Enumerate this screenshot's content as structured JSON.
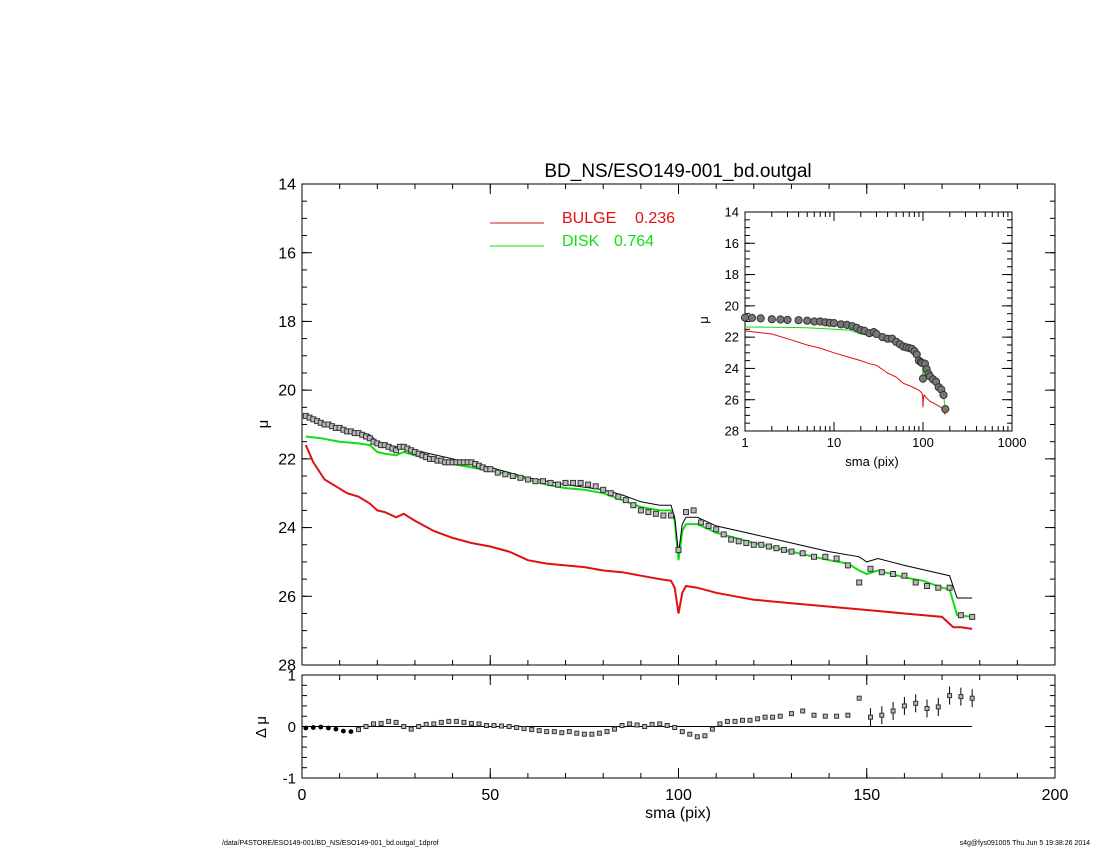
{
  "figure": {
    "title": "BD_NS/ESO149-001_bd.outgal",
    "footer_left": "/data/P4STORE/ESO149-001/BD_NS/ESO149-001_bd.outgal_1dprof",
    "footer_right": "s4g@fys091005  Thu Jun  5 19:38:26 2014"
  },
  "colors": {
    "bulge": "#e01010",
    "disk": "#10e010",
    "model": "#000000",
    "data": "#404040"
  },
  "chart_data": [
    {
      "id": "main",
      "type": "line",
      "title": "BD_NS/ESO149-001_bd.outgal",
      "xlabel": "",
      "ylabel": "μ",
      "xlim": [
        0,
        200
      ],
      "ylim": [
        28,
        14
      ],
      "xticks": [
        "0",
        "50",
        "100",
        "150",
        "200"
      ],
      "yticks": [
        "14",
        "16",
        "18",
        "20",
        "22",
        "24",
        "26",
        "28"
      ],
      "legend": [
        {
          "label": "BULGE",
          "value": "0.236",
          "color": "#e01010"
        },
        {
          "label": "DISK",
          "value": "0.764",
          "color": "#10e010"
        }
      ],
      "series": [
        {
          "name": "BULGE",
          "x": [
            1,
            3,
            6,
            9,
            12,
            15,
            18,
            20,
            22,
            25,
            27,
            30,
            35,
            40,
            45,
            50,
            55,
            60,
            65,
            70,
            75,
            80,
            85,
            90,
            95,
            98,
            99,
            100,
            101,
            102,
            105,
            110,
            115,
            120,
            130,
            140,
            150,
            160,
            170,
            173,
            175,
            178
          ],
          "y": [
            21.6,
            22.1,
            22.6,
            22.8,
            23.0,
            23.1,
            23.3,
            23.5,
            23.55,
            23.7,
            23.6,
            23.8,
            24.1,
            24.3,
            24.45,
            24.55,
            24.7,
            24.95,
            25.05,
            25.1,
            25.15,
            25.25,
            25.3,
            25.4,
            25.5,
            25.55,
            25.75,
            26.5,
            25.9,
            25.7,
            25.75,
            25.9,
            26.0,
            26.1,
            26.2,
            26.3,
            26.4,
            26.5,
            26.6,
            26.9,
            26.9,
            26.95
          ]
        },
        {
          "name": "DISK",
          "x": [
            1,
            5,
            10,
            15,
            18,
            20,
            22,
            25,
            27,
            30,
            35,
            40,
            45,
            50,
            55,
            60,
            65,
            70,
            75,
            80,
            85,
            90,
            95,
            98,
            99,
            100,
            101,
            102,
            105,
            110,
            115,
            120,
            130,
            140,
            145,
            148,
            150,
            153,
            160,
            165,
            170,
            172,
            174,
            178
          ],
          "y": [
            21.35,
            21.4,
            21.5,
            21.55,
            21.6,
            21.8,
            21.85,
            21.9,
            21.8,
            21.9,
            22.05,
            22.15,
            22.25,
            22.35,
            22.45,
            22.6,
            22.75,
            22.85,
            22.9,
            23.0,
            23.2,
            23.4,
            23.5,
            23.5,
            23.8,
            24.95,
            24.1,
            23.9,
            23.9,
            24.15,
            24.3,
            24.45,
            24.7,
            24.95,
            25.05,
            25.25,
            25.35,
            25.25,
            25.45,
            25.55,
            25.75,
            25.8,
            26.55,
            26.6
          ]
        },
        {
          "name": "model",
          "x": [
            1,
            5,
            10,
            15,
            18,
            20,
            25,
            30,
            40,
            50,
            60,
            70,
            80,
            85,
            90,
            95,
            98,
            99,
            100,
            101,
            102,
            105,
            110,
            120,
            130,
            140,
            148,
            150,
            153,
            160,
            170,
            172,
            174,
            178
          ],
          "y": [
            20.75,
            20.95,
            21.1,
            21.2,
            21.3,
            21.5,
            21.65,
            21.75,
            22.0,
            22.25,
            22.55,
            22.75,
            22.9,
            23.05,
            23.25,
            23.35,
            23.35,
            23.7,
            24.75,
            23.9,
            23.7,
            23.7,
            23.95,
            24.2,
            24.45,
            24.7,
            24.85,
            25.0,
            24.9,
            25.1,
            25.35,
            25.4,
            26.05,
            26.05
          ]
        },
        {
          "name": "data",
          "x": [
            1,
            2,
            3,
            4,
            5,
            6,
            7,
            8,
            9,
            10,
            11,
            12,
            13,
            14,
            15,
            16,
            17,
            18,
            19,
            20,
            21,
            22,
            23,
            24,
            25,
            26,
            27,
            28,
            29,
            30,
            31,
            32,
            33,
            34,
            35,
            36,
            37,
            38,
            39,
            40,
            41,
            42,
            43,
            44,
            45,
            46,
            47,
            48,
            49,
            50,
            52,
            54,
            56,
            58,
            60,
            62,
            64,
            66,
            68,
            70,
            72,
            74,
            76,
            78,
            80,
            82,
            84,
            86,
            88,
            90,
            92,
            94,
            96,
            98,
            100,
            102,
            104,
            106,
            108,
            110,
            112,
            114,
            116,
            118,
            120,
            122,
            124,
            126,
            128,
            130,
            133,
            136,
            139,
            142,
            145,
            148,
            151,
            154,
            157,
            160,
            163,
            166,
            169,
            172,
            175,
            178
          ],
          "y": [
            20.75,
            20.8,
            20.85,
            20.9,
            20.95,
            21.0,
            21.0,
            21.05,
            21.1,
            21.1,
            21.15,
            21.2,
            21.2,
            21.25,
            21.25,
            21.3,
            21.35,
            21.4,
            21.5,
            21.55,
            21.6,
            21.6,
            21.65,
            21.7,
            21.75,
            21.65,
            21.65,
            21.7,
            21.75,
            21.8,
            21.85,
            21.9,
            21.95,
            22.0,
            22.0,
            22.05,
            22.05,
            22.1,
            22.1,
            22.1,
            22.1,
            22.1,
            22.1,
            22.1,
            22.1,
            22.15,
            22.2,
            22.25,
            22.3,
            22.3,
            22.4,
            22.45,
            22.5,
            22.55,
            22.6,
            22.65,
            22.65,
            22.7,
            22.75,
            22.7,
            22.7,
            22.7,
            22.75,
            22.8,
            22.9,
            23.0,
            23.1,
            23.2,
            23.35,
            23.5,
            23.55,
            23.6,
            23.65,
            23.65,
            24.65,
            23.55,
            23.5,
            23.85,
            23.95,
            24.05,
            24.2,
            24.35,
            24.4,
            24.45,
            24.5,
            24.5,
            24.55,
            24.6,
            24.65,
            24.7,
            24.75,
            24.85,
            24.85,
            24.9,
            25.1,
            25.6,
            25.2,
            25.3,
            25.35,
            25.4,
            25.6,
            25.7,
            25.75,
            25.75,
            26.55,
            26.6
          ]
        }
      ]
    },
    {
      "id": "residual",
      "type": "scatter",
      "xlabel": "sma (pix)",
      "ylabel": "Δ μ",
      "xlim": [
        0,
        200
      ],
      "ylim": [
        -1,
        1
      ],
      "xticks": [
        "0",
        "50",
        "100",
        "150",
        "200"
      ],
      "yticks": [
        "1",
        "0",
        "-1"
      ],
      "series": [
        {
          "name": "Δ μ",
          "x": [
            1,
            3,
            5,
            7,
            9,
            11,
            13,
            15,
            17,
            19,
            21,
            23,
            25,
            27,
            29,
            31,
            33,
            35,
            37,
            39,
            41,
            43,
            45,
            47,
            49,
            51,
            53,
            55,
            57,
            59,
            61,
            63,
            65,
            67,
            69,
            71,
            73,
            75,
            77,
            79,
            81,
            83,
            85,
            87,
            89,
            91,
            93,
            95,
            97,
            99,
            101,
            103,
            105,
            107,
            109,
            111,
            113,
            115,
            117,
            119,
            121,
            123,
            125,
            127,
            130,
            133,
            136,
            139,
            142,
            145,
            148,
            151,
            154,
            157,
            160,
            163,
            166,
            169,
            172,
            175,
            178
          ],
          "y": [
            -0.03,
            -0.02,
            -0.01,
            -0.03,
            -0.05,
            -0.09,
            -0.1,
            -0.06,
            0.0,
            0.05,
            0.06,
            0.1,
            0.08,
            0.0,
            -0.05,
            0.0,
            0.04,
            0.05,
            0.08,
            0.1,
            0.1,
            0.08,
            0.06,
            0.05,
            0.02,
            0.02,
            0.01,
            0.0,
            -0.02,
            -0.04,
            -0.06,
            -0.08,
            -0.1,
            -0.1,
            -0.12,
            -0.1,
            -0.13,
            -0.15,
            -0.15,
            -0.13,
            -0.1,
            -0.05,
            0.02,
            0.05,
            0.03,
            0.0,
            0.04,
            0.05,
            0.02,
            -0.02,
            -0.1,
            -0.15,
            -0.2,
            -0.18,
            -0.05,
            0.05,
            0.1,
            0.1,
            0.12,
            0.12,
            0.15,
            0.18,
            0.18,
            0.2,
            0.25,
            0.3,
            0.22,
            0.2,
            0.2,
            0.22,
            0.55,
            0.18,
            0.22,
            0.3,
            0.4,
            0.45,
            0.35,
            0.38,
            0.6,
            0.58,
            0.55
          ]
        }
      ]
    },
    {
      "id": "inset",
      "type": "scatter",
      "xlabel": "sma (pix)",
      "ylabel": "μ",
      "xscale": "log",
      "xlim": [
        1,
        1000
      ],
      "ylim": [
        28,
        14
      ],
      "xticks": [
        "1",
        "10",
        "100",
        "1000"
      ],
      "yticks": [
        "14",
        "16",
        "18",
        "20",
        "22",
        "24",
        "26",
        "28"
      ],
      "series": [
        {
          "name": "BULGE",
          "x": [
            1,
            2,
            3,
            5,
            7,
            10,
            15,
            20,
            25,
            30,
            40,
            50,
            60,
            70,
            80,
            90,
            97,
            99,
            100,
            101,
            103,
            110,
            120,
            140,
            160,
            178
          ],
          "y": [
            21.6,
            21.8,
            22.1,
            22.5,
            22.7,
            23.0,
            23.3,
            23.5,
            23.7,
            23.8,
            24.3,
            24.55,
            24.95,
            25.1,
            25.25,
            25.4,
            25.55,
            25.75,
            26.5,
            25.9,
            25.7,
            25.9,
            26.1,
            26.3,
            26.5,
            26.95
          ]
        },
        {
          "name": "DISK",
          "x": [
            1,
            3,
            5,
            10,
            15,
            20,
            25,
            30,
            40,
            50,
            60,
            70,
            80,
            90,
            95,
            99,
            100,
            101,
            103,
            110,
            120,
            140,
            160,
            170,
            178
          ],
          "y": [
            21.35,
            21.38,
            21.4,
            21.5,
            21.55,
            21.8,
            21.9,
            21.9,
            22.15,
            22.35,
            22.6,
            22.85,
            23.0,
            23.4,
            23.5,
            23.8,
            24.95,
            24.1,
            23.9,
            24.15,
            24.45,
            24.95,
            25.45,
            25.75,
            26.6
          ]
        },
        {
          "name": "data",
          "x": [
            1,
            1.2,
            1.5,
            2,
            2.5,
            3,
            4,
            5,
            6,
            7,
            8,
            9,
            10,
            12,
            14,
            16,
            18,
            20,
            22,
            25,
            28,
            30,
            35,
            40,
            45,
            50,
            55,
            60,
            65,
            70,
            75,
            80,
            85,
            90,
            95,
            98,
            100,
            105,
            110,
            115,
            120,
            130,
            140,
            150,
            160,
            170,
            178
          ],
          "y": [
            20.75,
            20.77,
            20.8,
            20.85,
            20.87,
            20.9,
            20.92,
            20.95,
            21.0,
            21.0,
            21.05,
            21.08,
            21.1,
            21.18,
            21.22,
            21.3,
            21.4,
            21.55,
            21.6,
            21.75,
            21.68,
            21.8,
            22.0,
            22.1,
            22.1,
            22.3,
            22.45,
            22.6,
            22.65,
            22.7,
            22.75,
            22.9,
            23.1,
            23.5,
            23.6,
            23.65,
            24.65,
            23.7,
            24.05,
            24.35,
            24.5,
            24.7,
            24.85,
            25.2,
            25.35,
            25.7,
            26.6
          ]
        }
      ]
    }
  ]
}
